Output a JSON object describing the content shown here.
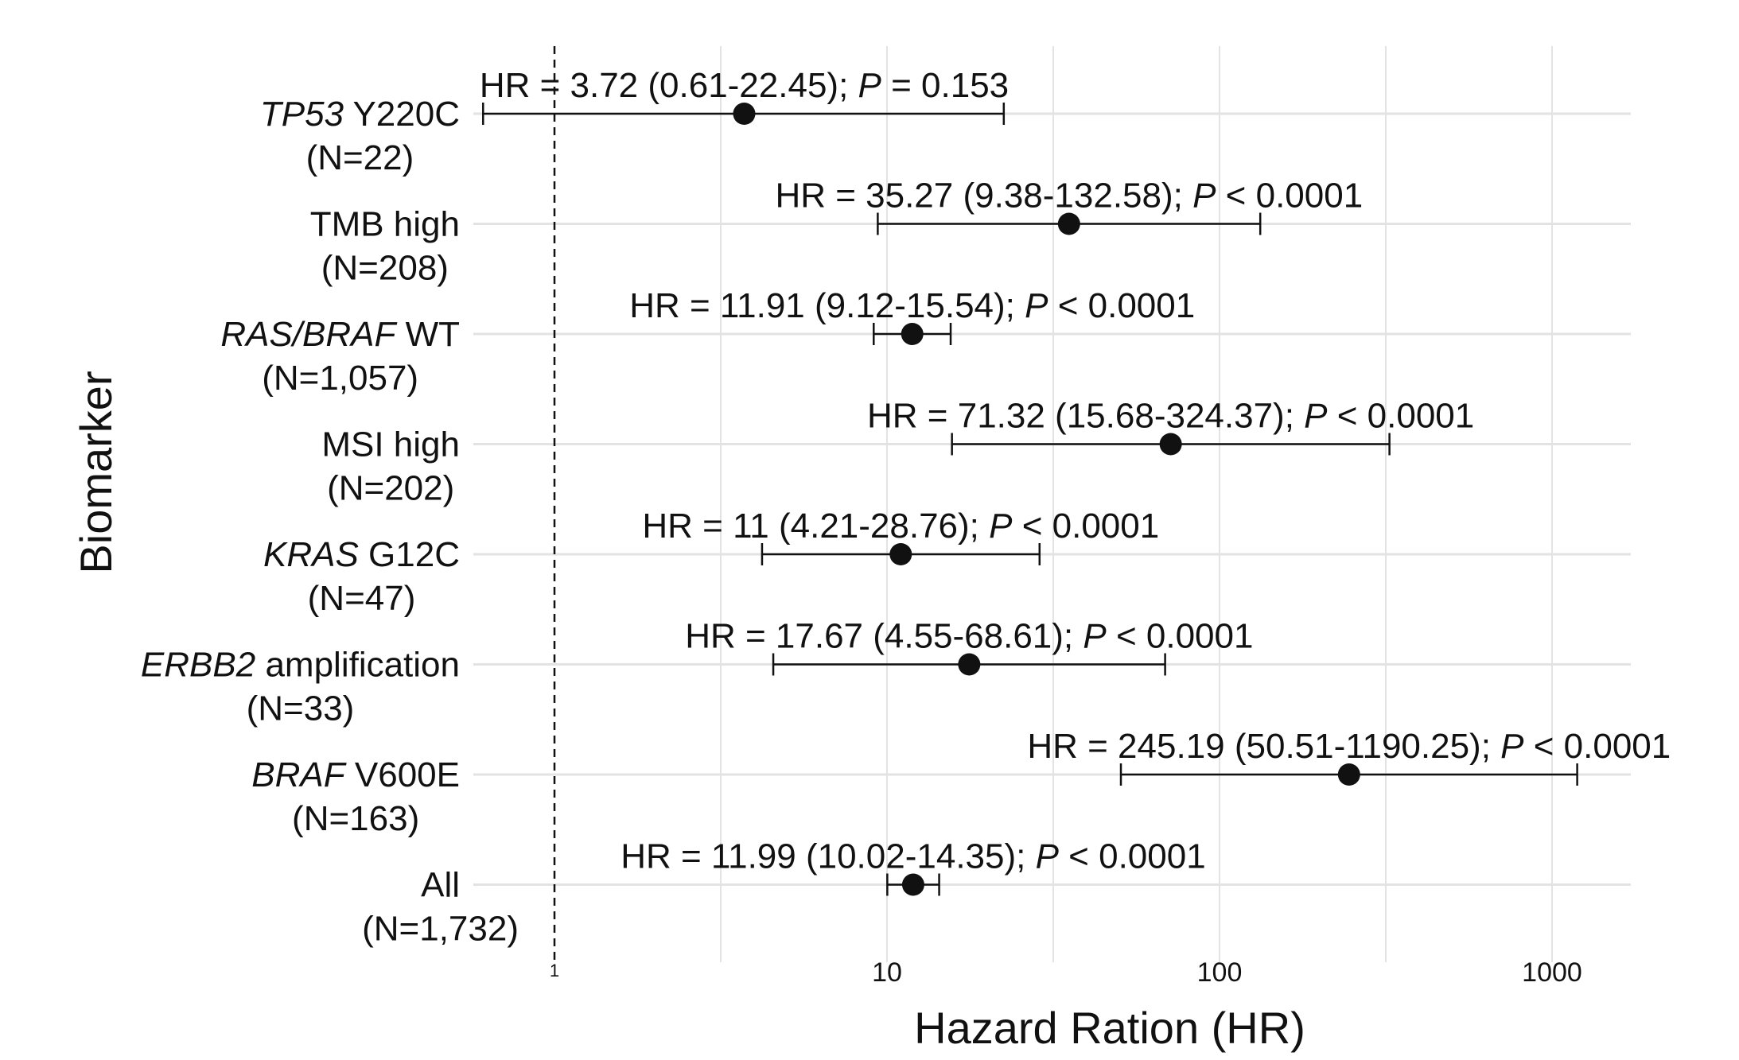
{
  "chart_data": {
    "type": "forest",
    "xlabel": "Hazard Ration (HR)",
    "ylabel": "Biomarker",
    "x_scale": "log10",
    "xlim": [
      0.6,
      1500
    ],
    "x_ticks": [
      1,
      10,
      100,
      1000
    ],
    "x_tick_labels": [
      "1",
      "10",
      "100",
      "1000"
    ],
    "reference_line": {
      "x": 1,
      "style": "dashed"
    },
    "grid": true,
    "rows": [
      {
        "label_italic": "TP53",
        "label_rest": " Y220C",
        "n": "(N=22)",
        "hr": 3.72,
        "ci": [
          0.61,
          22.45
        ],
        "annot_pre": "HR = 3.72 (0.61-22.45); ",
        "p_letter": "P",
        "annot_post": " = 0.153"
      },
      {
        "label_italic": "",
        "label_rest": "TMB high",
        "n": "(N=208)",
        "hr": 35.27,
        "ci": [
          9.38,
          132.58
        ],
        "annot_pre": "HR = 35.27 (9.38-132.58); ",
        "p_letter": "P",
        "annot_post": " < 0.0001"
      },
      {
        "label_italic": "RAS/BRAF",
        "label_rest": " WT",
        "n": "(N=1,057)",
        "hr": 11.91,
        "ci": [
          9.12,
          15.54
        ],
        "annot_pre": "HR = 11.91 (9.12-15.54); ",
        "p_letter": "P",
        "annot_post": " < 0.0001"
      },
      {
        "label_italic": "",
        "label_rest": "MSI high",
        "n": "(N=202)",
        "hr": 71.32,
        "ci": [
          15.68,
          324.37
        ],
        "annot_pre": "HR = 71.32 (15.68-324.37); ",
        "p_letter": "P",
        "annot_post": " < 0.0001"
      },
      {
        "label_italic": "KRAS",
        "label_rest": " G12C",
        "n": "(N=47)",
        "hr": 11,
        "ci": [
          4.21,
          28.76
        ],
        "annot_pre": "HR = 11 (4.21-28.76); ",
        "p_letter": "P",
        "annot_post": " < 0.0001"
      },
      {
        "label_italic": "ERBB2",
        "label_rest": " amplification",
        "n": "(N=33)",
        "hr": 17.67,
        "ci": [
          4.55,
          68.61
        ],
        "annot_pre": "HR = 17.67 (4.55-68.61); ",
        "p_letter": "P",
        "annot_post": " < 0.0001"
      },
      {
        "label_italic": "BRAF",
        "label_rest": " V600E",
        "n": "(N=163)",
        "hr": 245.19,
        "ci": [
          50.51,
          1190.25
        ],
        "annot_pre": "HR = 245.19 (50.51-1190.25); ",
        "p_letter": "P",
        "annot_post": " < 0.0001"
      },
      {
        "label_italic": "",
        "label_rest": "All",
        "n": "(N=1,732)",
        "hr": 11.99,
        "ci": [
          10.02,
          14.35
        ],
        "annot_pre": "HR = 11.99 (10.02-14.35); ",
        "p_letter": "P",
        "annot_post": " < 0.0001"
      }
    ]
  }
}
